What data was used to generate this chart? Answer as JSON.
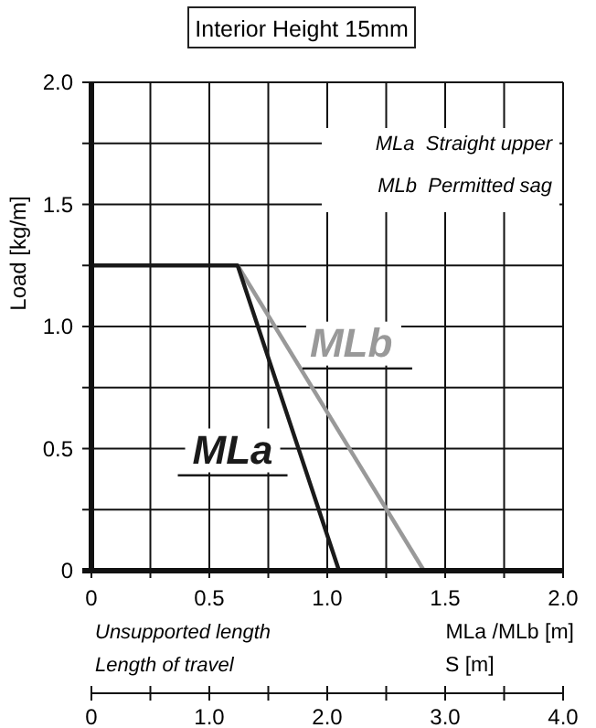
{
  "chart_data": {
    "type": "line",
    "title": "Interior Height 15mm",
    "xlabel": "MLa /MLb [m]",
    "ylabel": "Load [kg/m]",
    "x2label": "S [m]",
    "xlim": [
      0,
      2
    ],
    "xticks": [
      0,
      {
        "value": 0.25,
        "label": null
      },
      0.5,
      {
        "value": 0.75,
        "label": null
      },
      {
        "value": 1,
        "label": "1.0"
      },
      {
        "value": 1.25,
        "label": null
      },
      1.5,
      {
        "value": 1.75,
        "label": null
      },
      {
        "value": 2,
        "label": "2.0"
      }
    ],
    "ylim": [
      0,
      2
    ],
    "yticks": [
      0,
      {
        "value": 0.25,
        "label": null
      },
      0.5,
      {
        "value": 0.75,
        "label": null
      },
      {
        "value": 1,
        "label": "1.0"
      },
      {
        "value": 1.25,
        "label": null
      },
      1.5,
      {
        "value": 1.75,
        "label": null
      },
      {
        "value": 2,
        "label": "2.0"
      }
    ],
    "x2lim": [
      0,
      4
    ],
    "x2ticks": [
      0,
      {
        "value": 0.5,
        "label": null
      },
      {
        "value": 1,
        "label": "1.0"
      },
      {
        "value": 1.5,
        "label": null
      },
      {
        "value": 2,
        "label": "2.0"
      },
      {
        "value": 2.5,
        "label": null
      },
      {
        "value": 3,
        "label": "3.0"
      },
      {
        "value": 3.5,
        "label": null
      },
      {
        "value": 4,
        "label": "4.0"
      }
    ],
    "grid": true,
    "marker": "none",
    "line_style": "solid",
    "annotations": [
      "MLa  Straight upper",
      "MLb  Permitted sag",
      "Unsupported length",
      "Length of travel"
    ],
    "series": [
      {
        "name": "MLa",
        "color": "#1a1a1a",
        "x": [
          0,
          0.62,
          1.05
        ],
        "values": [
          1.25,
          1.25,
          0
        ]
      },
      {
        "name": "MLb",
        "color": "#999999",
        "x": [
          0.62,
          1.41
        ],
        "values": [
          1.25,
          0
        ]
      }
    ]
  }
}
